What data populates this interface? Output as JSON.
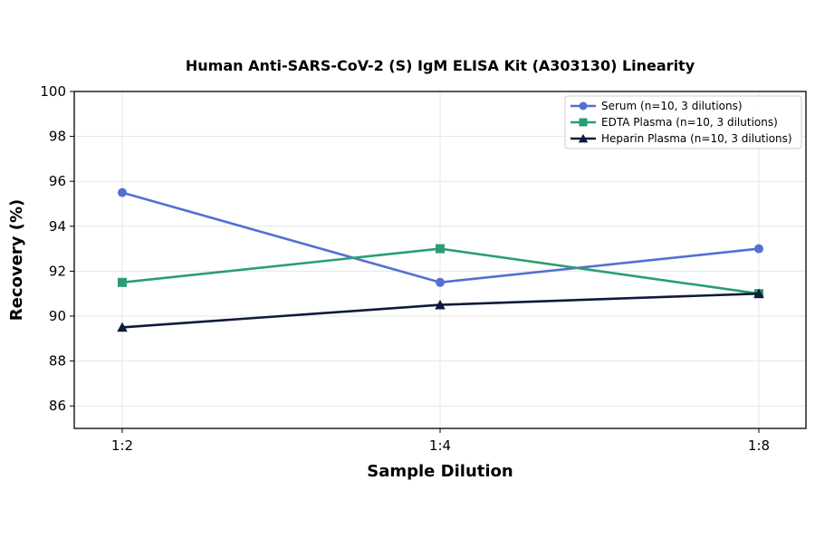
{
  "chart_data": {
    "type": "line",
    "title": "Human Anti-SARS-CoV-2 (S) IgM ELISA Kit (A303130) Linearity",
    "xlabel": "Sample Dilution",
    "ylabel": "Recovery (%)",
    "categories": [
      "1:2",
      "1:4",
      "1:8"
    ],
    "ylim": [
      85,
      100
    ],
    "yticks": [
      86,
      88,
      90,
      92,
      94,
      96,
      98,
      100
    ],
    "grid": true,
    "legend_position": "top-right",
    "series": [
      {
        "name": "Serum (n=10, 3 dilutions)",
        "values": [
          95.5,
          91.5,
          93.0
        ],
        "color": "#5470d0",
        "marker": "circle"
      },
      {
        "name": "EDTA Plasma (n=10, 3 dilutions)",
        "values": [
          91.5,
          93.0,
          91.0
        ],
        "color": "#2a9d74",
        "marker": "square"
      },
      {
        "name": "Heparin Plasma (n=10, 3 dilutions)",
        "values": [
          89.5,
          90.5,
          91.0
        ],
        "color": "#0f1a3c",
        "marker": "triangle"
      }
    ]
  }
}
